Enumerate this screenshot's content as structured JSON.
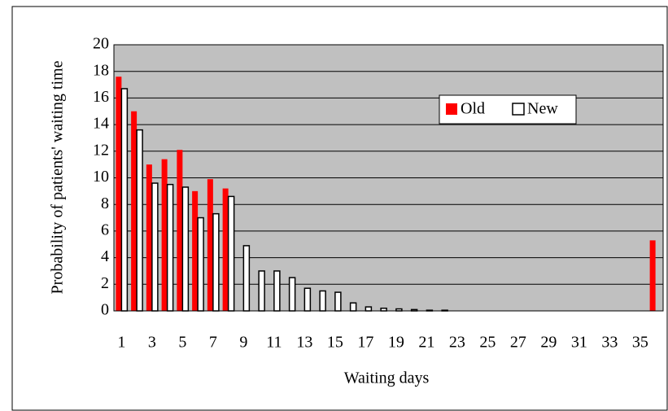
{
  "chart_data": {
    "type": "bar",
    "categories": [
      "1",
      null,
      "3",
      null,
      "5",
      null,
      "7",
      null,
      "9",
      null,
      "11",
      null,
      "13",
      null,
      "15",
      null,
      "17",
      null,
      "19",
      null,
      "21",
      null,
      "23",
      null,
      "25",
      null,
      "27",
      null,
      "29",
      null,
      "31",
      null,
      "33",
      null,
      "35",
      null
    ],
    "series": [
      {
        "name": "Old",
        "color": "#ff0000",
        "values": [
          17.6,
          15.0,
          11.0,
          11.4,
          12.1,
          9.0,
          9.9,
          9.2,
          0,
          0,
          0,
          0,
          0,
          0,
          0,
          0,
          0,
          0,
          0,
          0,
          0,
          0,
          0,
          0,
          0,
          0,
          0,
          0,
          0,
          0,
          0,
          0,
          0,
          0,
          0,
          5.3
        ]
      },
      {
        "name": "New",
        "color": "#ffffff",
        "values": [
          16.7,
          13.6,
          9.6,
          9.5,
          9.3,
          7.0,
          7.3,
          8.6,
          4.9,
          3.0,
          3.0,
          2.5,
          1.7,
          1.5,
          1.4,
          0.6,
          0.3,
          0.2,
          0.15,
          0.1,
          0.05,
          0.05,
          0,
          0,
          0,
          0,
          0,
          0,
          0,
          0,
          0,
          0,
          0,
          0,
          0,
          0
        ]
      }
    ],
    "ylim": [
      0,
      20
    ],
    "yticks": [
      0,
      2,
      4,
      6,
      8,
      10,
      12,
      14,
      16,
      18,
      20
    ],
    "grid": true,
    "xlabel": "Waiting days",
    "ylabel": "Probability of patients' waiting time",
    "legend": "upper right",
    "background": "#c0c0c0"
  }
}
